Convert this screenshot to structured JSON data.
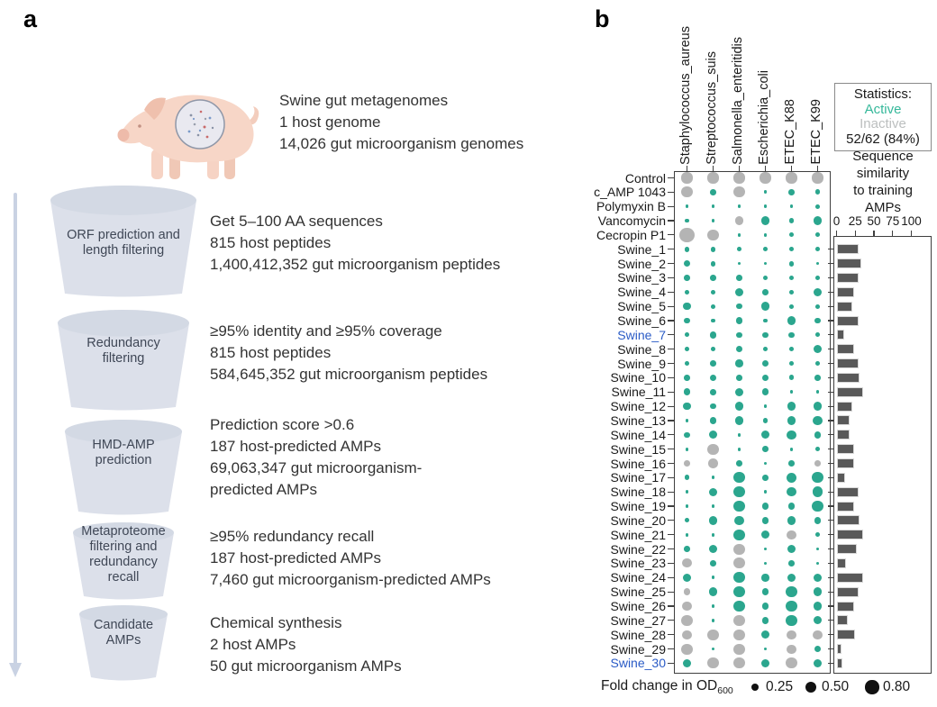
{
  "figure": {
    "panel_a_label": "a",
    "panel_b_label": "b"
  },
  "panel_a": {
    "pig_caption": [
      "Swine gut metagenomes",
      "1 host genome",
      "14,026 gut microorganism genomes"
    ],
    "steps": [
      {
        "funnel_label": [
          "ORF prediction and",
          "length filtering"
        ],
        "text": [
          "Get 5–100 AA sequences",
          "815 host peptides",
          "1,400,412,352 gut microorganism peptides"
        ]
      },
      {
        "funnel_label": [
          "Redundancy",
          "filtering"
        ],
        "text": [
          "≥95% identity and ≥95% coverage",
          "815 host peptides",
          "584,645,352 gut microorganism peptides"
        ]
      },
      {
        "funnel_label": [
          "HMD-AMP",
          "prediction"
        ],
        "text": [
          "Prediction score >0.6",
          "187 host-predicted AMPs",
          "69,063,347 gut microorganism-",
          "predicted AMPs"
        ]
      },
      {
        "funnel_label": [
          "Metaproteome",
          "filtering and",
          "redundancy",
          "recall"
        ],
        "text": [
          "≥95% redundancy recall",
          "187 host-predicted AMPs",
          "7,460 gut microorganism-predicted AMPs"
        ]
      },
      {
        "funnel_label": [
          "Candidate",
          "AMPs"
        ],
        "text": [
          "Chemical synthesis",
          "2 host AMPs",
          "50 gut microorganism AMPs"
        ]
      }
    ]
  },
  "panel_b": {
    "stats_box": {
      "title": "Statistics:",
      "active_label": "Active",
      "inactive_label": "Inactive",
      "value": "52/62 (84%)"
    },
    "bar_title_lines": [
      "Sequence",
      "similarity",
      "to training",
      "AMPs"
    ],
    "legend": {
      "label": "Fold change in OD",
      "subscript": "600",
      "entries": [
        {
          "value": "0.25",
          "size": 0.25
        },
        {
          "value": "0.50",
          "size": 0.5
        },
        {
          "value": "0.80",
          "size": 0.8
        }
      ]
    }
  },
  "chart_data": [
    {
      "type": "scatter",
      "subtype": "bubble_matrix",
      "title": "Antimicrobial activity (dot size = fold change in OD600; teal = active, gray = inactive)",
      "columns": [
        "Staphylococcus_aureus",
        "Streptococcus_suis",
        "Salmonella_enteritidis",
        "Escherichia_coli",
        "ETEC_K88",
        "ETEC_K99"
      ],
      "rows": [
        "Control",
        "c_AMP 1043",
        "Polymyxin B",
        "Vancomycin",
        "Cecropin P1",
        "Swine_1",
        "Swine_2",
        "Swine_3",
        "Swine_4",
        "Swine_5",
        "Swine_6",
        "Swine_7",
        "Swine_8",
        "Swine_9",
        "Swine_10",
        "Swine_11",
        "Swine_12",
        "Swine_13",
        "Swine_14",
        "Swine_15",
        "Swine_16",
        "Swine_17",
        "Swine_18",
        "Swine_19",
        "Swine_20",
        "Swine_21",
        "Swine_22",
        "Swine_23",
        "Swine_24",
        "Swine_25",
        "Swine_26",
        "Swine_27",
        "Swine_28",
        "Swine_29",
        "Swine_30"
      ],
      "highlighted_rows": [
        "Swine_7",
        "Swine_30"
      ],
      "size_legend_values": [
        0.25,
        0.5,
        0.8
      ],
      "dots": [
        [
          [
            0.5,
            "i"
          ],
          [
            0.5,
            "i"
          ],
          [
            0.5,
            "i"
          ],
          [
            0.5,
            "i"
          ],
          [
            0.5,
            "i"
          ],
          [
            0.5,
            "i"
          ]
        ],
        [
          [
            0.5,
            "i"
          ],
          [
            0.15,
            "a"
          ],
          [
            0.5,
            "i"
          ],
          [
            0.05,
            "a"
          ],
          [
            0.15,
            "a"
          ],
          [
            0.12,
            "a"
          ]
        ],
        [
          [
            0.05,
            "a"
          ],
          [
            0.05,
            "a"
          ],
          [
            0.05,
            "a"
          ],
          [
            0.05,
            "a"
          ],
          [
            0.05,
            "a"
          ],
          [
            0.08,
            "a"
          ]
        ],
        [
          [
            0.08,
            "a"
          ],
          [
            0.05,
            "a"
          ],
          [
            0.3,
            "i"
          ],
          [
            0.3,
            "a"
          ],
          [
            0.12,
            "a"
          ],
          [
            0.3,
            "a"
          ]
        ],
        [
          [
            0.9,
            "i"
          ],
          [
            0.55,
            "i"
          ],
          [
            0.05,
            "a"
          ],
          [
            0.05,
            "a"
          ],
          [
            0.08,
            "a"
          ],
          [
            0.08,
            "a"
          ]
        ],
        [
          [
            0.12,
            "a"
          ],
          [
            0.12,
            "a"
          ],
          [
            0.08,
            "a"
          ],
          [
            0.08,
            "a"
          ],
          [
            0.08,
            "a"
          ],
          [
            0.08,
            "a"
          ]
        ],
        [
          [
            0.18,
            "a"
          ],
          [
            0.12,
            "a"
          ],
          [
            0.05,
            "a"
          ],
          [
            0.05,
            "a"
          ],
          [
            0.12,
            "a"
          ],
          [
            0.05,
            "a"
          ]
        ],
        [
          [
            0.15,
            "a"
          ],
          [
            0.15,
            "a"
          ],
          [
            0.15,
            "a"
          ],
          [
            0.12,
            "a"
          ],
          [
            0.12,
            "a"
          ],
          [
            0.08,
            "a"
          ]
        ],
        [
          [
            0.08,
            "a"
          ],
          [
            0.08,
            "a"
          ],
          [
            0.3,
            "a"
          ],
          [
            0.15,
            "a"
          ],
          [
            0.08,
            "a"
          ],
          [
            0.3,
            "a"
          ]
        ],
        [
          [
            0.25,
            "a"
          ],
          [
            0.08,
            "a"
          ],
          [
            0.15,
            "a"
          ],
          [
            0.3,
            "a"
          ],
          [
            0.08,
            "a"
          ],
          [
            0.08,
            "a"
          ]
        ],
        [
          [
            0.15,
            "a"
          ],
          [
            0.08,
            "a"
          ],
          [
            0.18,
            "a"
          ],
          [
            0.08,
            "a"
          ],
          [
            0.3,
            "a"
          ],
          [
            0.15,
            "a"
          ]
        ],
        [
          [
            0.08,
            "a"
          ],
          [
            0.2,
            "a"
          ],
          [
            0.15,
            "a"
          ],
          [
            0.15,
            "a"
          ],
          [
            0.15,
            "a"
          ],
          [
            0.08,
            "a"
          ]
        ],
        [
          [
            0.08,
            "a"
          ],
          [
            0.08,
            "a"
          ],
          [
            0.2,
            "a"
          ],
          [
            0.08,
            "a"
          ],
          [
            0.08,
            "a"
          ],
          [
            0.3,
            "a"
          ]
        ],
        [
          [
            0.08,
            "a"
          ],
          [
            0.15,
            "a"
          ],
          [
            0.25,
            "a"
          ],
          [
            0.18,
            "a"
          ],
          [
            0.08,
            "a"
          ],
          [
            0.08,
            "a"
          ]
        ],
        [
          [
            0.15,
            "a"
          ],
          [
            0.2,
            "a"
          ],
          [
            0.15,
            "a"
          ],
          [
            0.2,
            "a"
          ],
          [
            0.12,
            "a"
          ],
          [
            0.15,
            "a"
          ]
        ],
        [
          [
            0.22,
            "a"
          ],
          [
            0.15,
            "a"
          ],
          [
            0.3,
            "a"
          ],
          [
            0.2,
            "a"
          ],
          [
            0.05,
            "a"
          ],
          [
            0.05,
            "a"
          ]
        ],
        [
          [
            0.25,
            "a"
          ],
          [
            0.15,
            "a"
          ],
          [
            0.3,
            "a"
          ],
          [
            0.05,
            "a"
          ],
          [
            0.3,
            "a"
          ],
          [
            0.3,
            "a"
          ]
        ],
        [
          [
            0.05,
            "a"
          ],
          [
            0.2,
            "a"
          ],
          [
            0.3,
            "a"
          ],
          [
            0.12,
            "a"
          ],
          [
            0.3,
            "a"
          ],
          [
            0.35,
            "a"
          ]
        ],
        [
          [
            0.15,
            "a"
          ],
          [
            0.3,
            "a"
          ],
          [
            0.05,
            "a"
          ],
          [
            0.3,
            "a"
          ],
          [
            0.35,
            "a"
          ],
          [
            0.2,
            "a"
          ]
        ],
        [
          [
            0.05,
            "a"
          ],
          [
            0.5,
            "i"
          ],
          [
            0.05,
            "a"
          ],
          [
            0.15,
            "a"
          ],
          [
            0.05,
            "a"
          ],
          [
            0.08,
            "a"
          ]
        ],
        [
          [
            0.15,
            "i"
          ],
          [
            0.4,
            "i"
          ],
          [
            0.15,
            "a"
          ],
          [
            0.05,
            "a"
          ],
          [
            0.15,
            "a"
          ],
          [
            0.15,
            "i"
          ]
        ],
        [
          [
            0.12,
            "a"
          ],
          [
            0.05,
            "a"
          ],
          [
            0.5,
            "a"
          ],
          [
            0.15,
            "a"
          ],
          [
            0.45,
            "a"
          ],
          [
            0.5,
            "a"
          ]
        ],
        [
          [
            0.05,
            "a"
          ],
          [
            0.3,
            "a"
          ],
          [
            0.5,
            "a"
          ],
          [
            0.05,
            "a"
          ],
          [
            0.35,
            "a"
          ],
          [
            0.45,
            "a"
          ]
        ],
        [
          [
            0.05,
            "a"
          ],
          [
            0.05,
            "a"
          ],
          [
            0.5,
            "a"
          ],
          [
            0.2,
            "a"
          ],
          [
            0.2,
            "a"
          ],
          [
            0.5,
            "a"
          ]
        ],
        [
          [
            0.08,
            "a"
          ],
          [
            0.3,
            "a"
          ],
          [
            0.35,
            "a"
          ],
          [
            0.2,
            "a"
          ],
          [
            0.3,
            "a"
          ],
          [
            0.2,
            "a"
          ]
        ],
        [
          [
            0.05,
            "a"
          ],
          [
            0.05,
            "a"
          ],
          [
            0.5,
            "a"
          ],
          [
            0.3,
            "a"
          ],
          [
            0.35,
            "i"
          ],
          [
            0.08,
            "a"
          ]
        ],
        [
          [
            0.15,
            "a"
          ],
          [
            0.3,
            "a"
          ],
          [
            0.5,
            "i"
          ],
          [
            0.05,
            "a"
          ],
          [
            0.3,
            "a"
          ],
          [
            0.05,
            "a"
          ]
        ],
        [
          [
            0.35,
            "i"
          ],
          [
            0.15,
            "a"
          ],
          [
            0.5,
            "i"
          ],
          [
            0.05,
            "a"
          ],
          [
            0.15,
            "a"
          ],
          [
            0.05,
            "a"
          ]
        ],
        [
          [
            0.3,
            "a"
          ],
          [
            0.05,
            "a"
          ],
          [
            0.5,
            "a"
          ],
          [
            0.25,
            "a"
          ],
          [
            0.3,
            "a"
          ],
          [
            0.3,
            "a"
          ]
        ],
        [
          [
            0.2,
            "i"
          ],
          [
            0.3,
            "a"
          ],
          [
            0.5,
            "a"
          ],
          [
            0.2,
            "a"
          ],
          [
            0.5,
            "a"
          ],
          [
            0.3,
            "a"
          ]
        ],
        [
          [
            0.35,
            "i"
          ],
          [
            0.05,
            "a"
          ],
          [
            0.5,
            "a"
          ],
          [
            0.2,
            "a"
          ],
          [
            0.5,
            "a"
          ],
          [
            0.3,
            "a"
          ]
        ],
        [
          [
            0.55,
            "i"
          ],
          [
            0.05,
            "a"
          ],
          [
            0.5,
            "i"
          ],
          [
            0.2,
            "a"
          ],
          [
            0.5,
            "a"
          ],
          [
            0.3,
            "a"
          ]
        ],
        [
          [
            0.35,
            "i"
          ],
          [
            0.5,
            "i"
          ],
          [
            0.5,
            "i"
          ],
          [
            0.3,
            "a"
          ],
          [
            0.35,
            "i"
          ],
          [
            0.35,
            "i"
          ]
        ],
        [
          [
            0.5,
            "i"
          ],
          [
            0.05,
            "a"
          ],
          [
            0.5,
            "i"
          ],
          [
            0.05,
            "a"
          ],
          [
            0.35,
            "i"
          ],
          [
            0.2,
            "a"
          ]
        ],
        [
          [
            0.3,
            "a"
          ],
          [
            0.5,
            "i"
          ],
          [
            0.5,
            "i"
          ],
          [
            0.3,
            "a"
          ],
          [
            0.5,
            "i"
          ],
          [
            0.3,
            "a"
          ]
        ]
      ]
    },
    {
      "type": "bar",
      "orientation": "horizontal",
      "title": "Sequence similarity to training AMPs",
      "categories": [
        "Swine_1",
        "Swine_2",
        "Swine_3",
        "Swine_4",
        "Swine_5",
        "Swine_6",
        "Swine_7",
        "Swine_8",
        "Swine_9",
        "Swine_10",
        "Swine_11",
        "Swine_12",
        "Swine_13",
        "Swine_14",
        "Swine_15",
        "Swine_16",
        "Swine_17",
        "Swine_18",
        "Swine_19",
        "Swine_20",
        "Swine_21",
        "Swine_22",
        "Swine_23",
        "Swine_24",
        "Swine_25",
        "Swine_26",
        "Swine_27",
        "Swine_28",
        "Swine_29",
        "Swine_30"
      ],
      "values": [
        30,
        33,
        30,
        24,
        21,
        29,
        10,
        23,
        29,
        31,
        36,
        21,
        17,
        18,
        23,
        23,
        12,
        29,
        24,
        31,
        36,
        27,
        13,
        35,
        29,
        23,
        15,
        25,
        7,
        8
      ],
      "xlim": [
        0,
        100
      ],
      "xticks": [
        0,
        25,
        50,
        75,
        100
      ]
    }
  ],
  "colors": {
    "active": "#2BA68E",
    "inactive": "#B4B4B4",
    "bar": "#595959",
    "highlight": "#2A5BC6",
    "funnel": "#DCE0EA",
    "funnel_rim": "#CDD3E0",
    "arrow": "#C9D2E3",
    "legend_dot": "#111111",
    "stats_active": "#35B89A",
    "stats_inactive": "#BCBFBF"
  }
}
